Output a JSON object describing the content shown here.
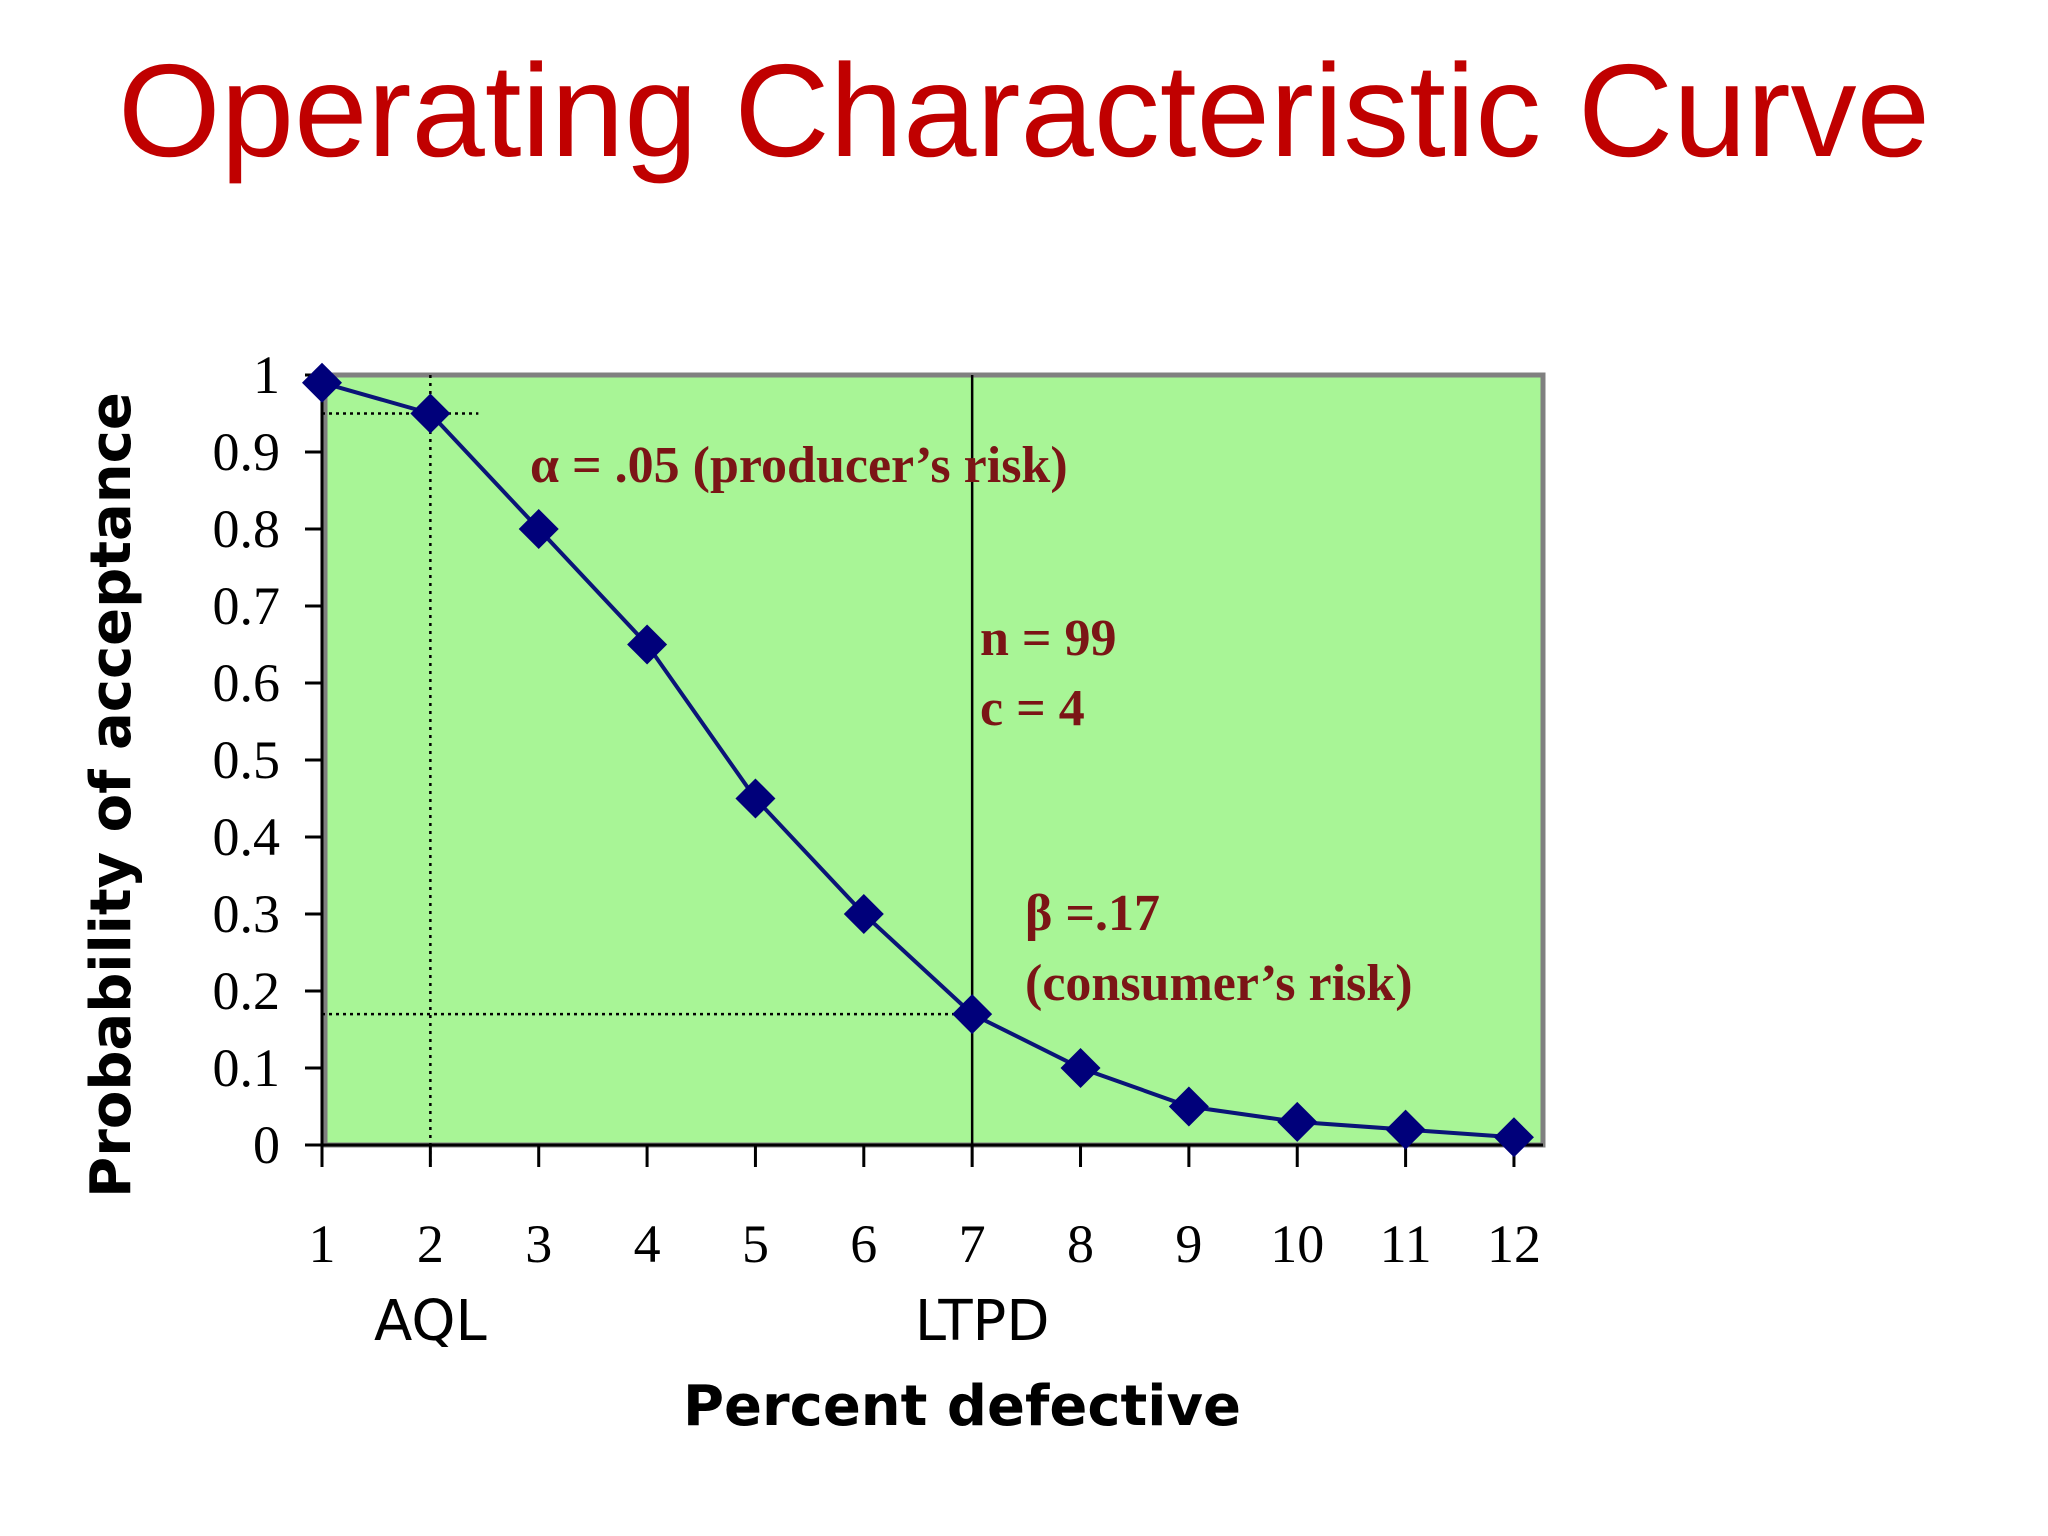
{
  "slide": {
    "title": "Operating Characteristic Curve"
  },
  "chart_data": {
    "type": "line",
    "title": "",
    "xlabel": "Percent defective",
    "ylabel": "Probability of acceptance",
    "x": [
      1,
      2,
      3,
      4,
      5,
      6,
      7,
      8,
      9,
      10,
      11,
      12
    ],
    "series": [
      {
        "values": [
          0.99,
          0.95,
          0.8,
          0.65,
          0.45,
          0.3,
          0.17,
          0.1,
          0.05,
          0.03,
          0.02,
          0.01
        ]
      }
    ],
    "xlim": [
      1,
      12
    ],
    "ylim": [
      0,
      1
    ],
    "x_ticks": [
      "1",
      "2",
      "3",
      "4",
      "5",
      "6",
      "7",
      "8",
      "9",
      "10",
      "11",
      "12"
    ],
    "y_ticks": [
      "0",
      "0.1",
      "0.2",
      "0.3",
      "0.4",
      "0.5",
      "0.6",
      "0.7",
      "0.8",
      "0.9",
      "1"
    ],
    "x_markers": [
      {
        "label": "AQL",
        "x": 2,
        "y": 0.95
      },
      {
        "label": "LTPD",
        "x": 7,
        "y": 0.17
      }
    ],
    "annotations": {
      "alpha": "α = .05 (producer’s risk)",
      "sample_size": "n = 99",
      "acceptance_number": "c = 4",
      "beta": "β =.17",
      "beta_note": "(consumer’s risk)"
    },
    "colors": {
      "plot_bg": "#a8f596",
      "line": "#0a1478",
      "marker": "#00007a",
      "annotation": "#7b1516",
      "title": "#c00000"
    },
    "grid": false,
    "marker_shape": "diamond"
  }
}
